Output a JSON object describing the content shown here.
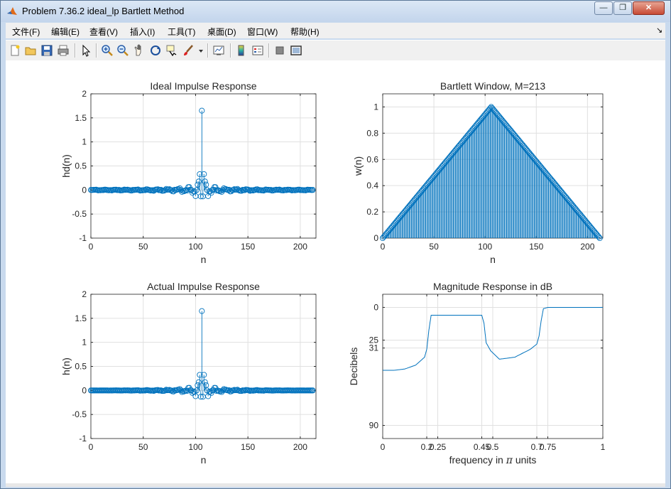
{
  "window": {
    "title": "Problem 7.36.2 ideal_lp Bartlett Method",
    "minimize_label": "—",
    "restore_label": "❐",
    "close_label": "✕"
  },
  "menu": {
    "items": [
      "文件(F)",
      "编辑(E)",
      "查看(V)",
      "插入(I)",
      "工具(T)",
      "桌面(D)",
      "窗口(W)",
      "帮助(H)"
    ],
    "overflow_arrow": "↘"
  },
  "toolbar": {
    "icons": [
      "new-figure-icon",
      "open-icon",
      "save-icon",
      "print-icon",
      "pointer-icon",
      "zoom-in-icon",
      "zoom-out-icon",
      "pan-icon",
      "rotate-icon",
      "data-cursor-icon",
      "brush-icon",
      "link-plot-icon",
      "colorbar-icon",
      "legend-icon",
      "hide-plot-tools-icon",
      "show-plot-tools-icon"
    ]
  },
  "colors": {
    "line": "#0072bd",
    "grid": "#e0e0e0",
    "axis": "#262626"
  },
  "chart_data": [
    {
      "type": "stem",
      "title": "Ideal Impulse Response",
      "xlabel": "n",
      "ylabel": "hd(n)",
      "xlim": [
        0,
        215
      ],
      "ylim": [
        -1,
        2
      ],
      "xticks": [
        0,
        50,
        100,
        150,
        200
      ],
      "xtick_labels": [
        "0",
        "50",
        "100",
        "150",
        "200"
      ],
      "yticks": [
        -1,
        -0.5,
        0,
        0.5,
        1,
        1.5,
        2
      ],
      "ytick_labels": [
        "-1",
        "-0.5",
        "0",
        "0.5",
        "1",
        "1.5",
        "2"
      ],
      "grid": true,
      "signal": {
        "n_start": 0,
        "n_end": 212,
        "center": 106,
        "peak": 1.65,
        "passband_edges_pi": [
          0.2,
          0.45,
          0.75
        ]
      }
    },
    {
      "type": "stem",
      "title": "Bartlett Window, M=213",
      "xlabel": "n",
      "ylabel": "w(n)",
      "xlim": [
        0,
        215
      ],
      "ylim": [
        0,
        1.1
      ],
      "xticks": [
        0,
        50,
        100,
        150,
        200
      ],
      "xtick_labels": [
        "0",
        "50",
        "100",
        "150",
        "200"
      ],
      "yticks": [
        0,
        0.2,
        0.4,
        0.6,
        0.8,
        1
      ],
      "ytick_labels": [
        "0",
        "0.2",
        "0.4",
        "0.6",
        "0.8",
        "1"
      ],
      "grid": true,
      "signal": {
        "n_start": 0,
        "n_end": 212,
        "center": 106,
        "peak": 1
      }
    },
    {
      "type": "stem",
      "title": "Actual Impulse Response",
      "xlabel": "n",
      "ylabel": "h(n)",
      "xlim": [
        0,
        215
      ],
      "ylim": [
        -1,
        2
      ],
      "xticks": [
        0,
        50,
        100,
        150,
        200
      ],
      "xtick_labels": [
        "0",
        "50",
        "100",
        "150",
        "200"
      ],
      "yticks": [
        -1,
        -0.5,
        0,
        0.5,
        1,
        1.5,
        2
      ],
      "ytick_labels": [
        "-1",
        "-0.5",
        "0",
        "0.5",
        "1",
        "1.5",
        "2"
      ],
      "grid": true,
      "signal": {
        "n_start": 0,
        "n_end": 212,
        "center": 106,
        "peak": 1.65,
        "passband_edges_pi": [
          0.2,
          0.45,
          0.75
        ]
      }
    },
    {
      "type": "line",
      "title": "Magnitude Response in dB",
      "xlabel_prefix": "frequency in ",
      "xlabel_symbol": "π",
      "xlabel_suffix": " units",
      "ylabel": "Decibels",
      "xlim": [
        0,
        1
      ],
      "ylim": [
        -100,
        10
      ],
      "y_reversed_labels": true,
      "xticks": [
        0,
        0.2,
        0.25,
        0.45,
        0.5,
        0.7,
        0.75,
        1
      ],
      "xtick_labels": [
        "0",
        "0.2",
        "0.25",
        "0.45",
        "0.5",
        "0.7",
        "0.75",
        "1"
      ],
      "yticks": [
        0,
        -25,
        -31,
        -90
      ],
      "ytick_labels": [
        "0",
        "25",
        "31",
        "90"
      ],
      "grid": true,
      "curve": [
        [
          0.0,
          -48
        ],
        [
          0.05,
          -48
        ],
        [
          0.1,
          -47
        ],
        [
          0.15,
          -44
        ],
        [
          0.19,
          -38
        ],
        [
          0.2,
          -32
        ],
        [
          0.21,
          -17
        ],
        [
          0.22,
          -6
        ],
        [
          0.25,
          -6
        ],
        [
          0.45,
          -6
        ],
        [
          0.46,
          -12
        ],
        [
          0.47,
          -27
        ],
        [
          0.49,
          -33
        ],
        [
          0.53,
          -39.5
        ],
        [
          0.6,
          -38
        ],
        [
          0.67,
          -32
        ],
        [
          0.7,
          -28
        ],
        [
          0.71,
          -22
        ],
        [
          0.72,
          -10
        ],
        [
          0.73,
          -1
        ],
        [
          0.75,
          0
        ],
        [
          1.0,
          0
        ]
      ]
    }
  ]
}
